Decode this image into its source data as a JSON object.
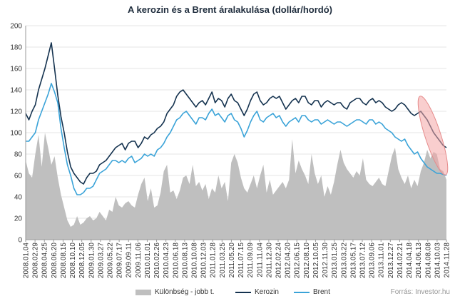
{
  "chart_data": {
    "type": "line",
    "title": "A kerozin  és a Brent áralakulása (dollár/hordó)",
    "source": "Forrás: Investor.hu",
    "ylim": [
      0,
      200
    ],
    "yticks": [
      "0",
      "20",
      "40",
      "60",
      "80",
      "100",
      "120",
      "140",
      "160",
      "180",
      "200"
    ],
    "x_labels": [
      "2008.01.04",
      "2008.02.29",
      "2008.04.25",
      "2008.06.20",
      "2008.08.15",
      "2008.10.10",
      "2008.12.05",
      "2009.01.30",
      "2009.03.27",
      "2009.05.22",
      "2009.07.17",
      "2009.09.11",
      "2009.11.06",
      "2010.01.01",
      "2010.02.26",
      "2010.04.23",
      "2010.06.18",
      "2010.08.13",
      "2010.10.08",
      "2010.12.03",
      "2011.01.28",
      "2011.03.25",
      "2011.05.20",
      "2011.07.15",
      "2011.09.09",
      "2011.11.04",
      "2011.12.30",
      "2012.02.24",
      "2012.04.20",
      "2012.06.15",
      "2012.08.10",
      "2012.10.05",
      "2012.11.30",
      "2013.01.25",
      "2013.03.22",
      "2013.05.17",
      "2013.07.12",
      "2013.09.06",
      "2013.11.01",
      "2013.12.27",
      "2014.02.21",
      "2014.04.18",
      "2014.06.13",
      "2014.08.08",
      "2014.10.03",
      "2014.11.28"
    ],
    "legend_position": "bottom",
    "series": [
      {
        "name": "Különbség - jobb t.",
        "style": "area",
        "color": "#bfbfbf",
        "values": [
          74,
          62,
          58,
          80,
          98,
          68,
          100,
          86,
          70,
          78,
          58,
          42,
          30,
          18,
          12,
          14,
          22,
          14,
          16,
          20,
          22,
          18,
          20,
          26,
          22,
          18,
          28,
          26,
          40,
          32,
          30,
          34,
          36,
          32,
          30,
          42,
          52,
          58,
          36,
          48,
          30,
          32,
          44,
          64,
          70,
          44,
          46,
          38,
          46,
          58,
          60,
          52,
          70,
          50,
          54,
          46,
          52,
          38,
          48,
          44,
          60,
          48,
          54,
          36,
          72,
          80,
          72,
          58,
          48,
          44,
          52,
          60,
          48,
          60,
          70,
          44,
          56,
          42,
          46,
          50,
          54,
          48,
          56,
          94,
          62,
          74,
          66,
          60,
          52,
          80,
          62,
          52,
          60,
          40,
          50,
          42,
          54,
          70,
          84,
          72,
          66,
          62,
          58,
          64,
          60,
          76,
          56,
          52,
          50,
          54,
          58,
          52,
          50,
          64,
          78,
          86,
          66,
          58,
          52,
          60,
          48,
          56,
          50,
          64,
          72,
          84,
          76,
          82,
          80,
          66,
          64,
          56
        ]
      },
      {
        "name": "Kerozin",
        "style": "line",
        "color": "#14324f",
        "values": [
          118,
          112,
          120,
          126,
          140,
          150,
          160,
          172,
          184,
          160,
          135,
          115,
          100,
          82,
          68,
          62,
          58,
          54,
          52,
          58,
          62,
          62,
          64,
          70,
          72,
          74,
          78,
          82,
          86,
          88,
          90,
          84,
          90,
          92,
          92,
          86,
          90,
          96,
          94,
          98,
          100,
          104,
          106,
          110,
          118,
          122,
          126,
          134,
          138,
          140,
          136,
          132,
          128,
          124,
          128,
          130,
          126,
          132,
          138,
          128,
          132,
          130,
          124,
          132,
          136,
          130,
          128,
          122,
          116,
          122,
          130,
          136,
          138,
          130,
          126,
          128,
          132,
          134,
          132,
          134,
          128,
          122,
          126,
          130,
          132,
          128,
          134,
          134,
          128,
          126,
          130,
          130,
          124,
          128,
          130,
          128,
          126,
          128,
          128,
          124,
          122,
          128,
          130,
          132,
          132,
          128,
          126,
          130,
          132,
          128,
          130,
          128,
          124,
          122,
          120,
          122,
          126,
          128,
          126,
          122,
          118,
          116,
          118,
          120,
          116,
          112,
          106,
          100,
          96,
          92,
          88,
          86
        ]
      },
      {
        "name": "Brent",
        "style": "line",
        "color": "#3aa3d8",
        "values": [
          92,
          92,
          96,
          100,
          112,
          120,
          128,
          136,
          146,
          138,
          128,
          104,
          86,
          70,
          60,
          48,
          42,
          42,
          44,
          48,
          48,
          50,
          56,
          62,
          64,
          66,
          70,
          74,
          74,
          72,
          74,
          72,
          76,
          78,
          72,
          74,
          76,
          80,
          78,
          80,
          78,
          84,
          86,
          90,
          96,
          100,
          106,
          112,
          114,
          118,
          120,
          116,
          112,
          108,
          114,
          114,
          112,
          118,
          122,
          116,
          118,
          114,
          110,
          116,
          118,
          112,
          110,
          104,
          96,
          102,
          110,
          116,
          120,
          112,
          110,
          114,
          116,
          118,
          114,
          116,
          110,
          106,
          110,
          112,
          114,
          110,
          116,
          116,
          112,
          110,
          112,
          112,
          108,
          110,
          112,
          110,
          108,
          110,
          110,
          108,
          106,
          108,
          110,
          112,
          112,
          110,
          108,
          112,
          112,
          108,
          110,
          108,
          104,
          102,
          100,
          96,
          94,
          92,
          94,
          88,
          84,
          80,
          82,
          76,
          72,
          68,
          66,
          64,
          62,
          62,
          61,
          60
        ]
      }
    ]
  }
}
